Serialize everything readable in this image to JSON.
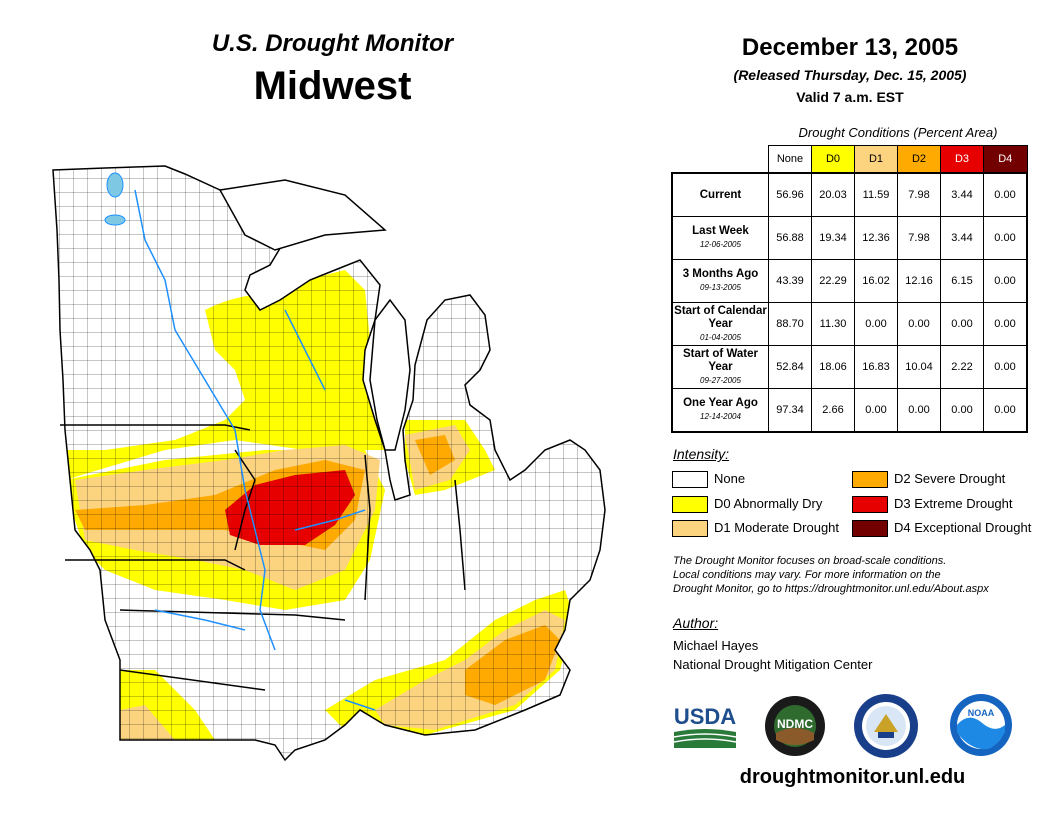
{
  "header": {
    "product": "U.S. Drought Monitor",
    "region": "Midwest",
    "date": "December 13, 2005",
    "released": "(Released Thursday, Dec. 15, 2005)",
    "valid": "Valid 7 a.m. EST"
  },
  "table": {
    "caption": "Drought Conditions (Percent Area)",
    "columns": [
      "None",
      "D0",
      "D1",
      "D2",
      "D3",
      "D4"
    ],
    "column_colors": [
      "#ffffff",
      "#ffff00",
      "#fcd37f",
      "#ffaa00",
      "#e60000",
      "#730000"
    ],
    "rows": [
      {
        "label": "Current",
        "date": "",
        "values": [
          "56.96",
          "20.03",
          "11.59",
          "7.98",
          "3.44",
          "0.00"
        ]
      },
      {
        "label": "Last Week",
        "date": "12-06-2005",
        "values": [
          "56.88",
          "19.34",
          "12.36",
          "7.98",
          "3.44",
          "0.00"
        ]
      },
      {
        "label": "3 Months Ago",
        "date": "09-13-2005",
        "values": [
          "43.39",
          "22.29",
          "16.02",
          "12.16",
          "6.15",
          "0.00"
        ]
      },
      {
        "label": "Start of Calendar Year",
        "date": "01-04-2005",
        "values": [
          "88.70",
          "11.30",
          "0.00",
          "0.00",
          "0.00",
          "0.00"
        ]
      },
      {
        "label": "Start of Water Year",
        "date": "09-27-2005",
        "values": [
          "52.84",
          "18.06",
          "16.83",
          "10.04",
          "2.22",
          "0.00"
        ]
      },
      {
        "label": "One Year Ago",
        "date": "12-14-2004",
        "values": [
          "97.34",
          "2.66",
          "0.00",
          "0.00",
          "0.00",
          "0.00"
        ]
      }
    ]
  },
  "legend": {
    "title": "Intensity:",
    "items": [
      {
        "label": "None",
        "color": "#ffffff"
      },
      {
        "label": "D0 Abnormally Dry",
        "color": "#ffff00"
      },
      {
        "label": "D1 Moderate Drought",
        "color": "#fcd37f"
      },
      {
        "label": "D2 Severe Drought",
        "color": "#ffaa00"
      },
      {
        "label": "D3 Extreme Drought",
        "color": "#e60000"
      },
      {
        "label": "D4 Exceptional Drought",
        "color": "#730000"
      }
    ]
  },
  "note": [
    "The Drought Monitor focuses on broad-scale conditions.",
    "Local conditions may vary. For more information on the",
    "Drought Monitor, go to https://droughtmonitor.unl.edu/About.aspx"
  ],
  "author": {
    "heading": "Author:",
    "name": "Michael Hayes",
    "org": "National Drought Mitigation Center"
  },
  "logos": {
    "usda": "USDA",
    "ndmc": "NDMC",
    "noaa": "NOAA"
  },
  "footer_url": "droughtmonitor.unl.edu"
}
